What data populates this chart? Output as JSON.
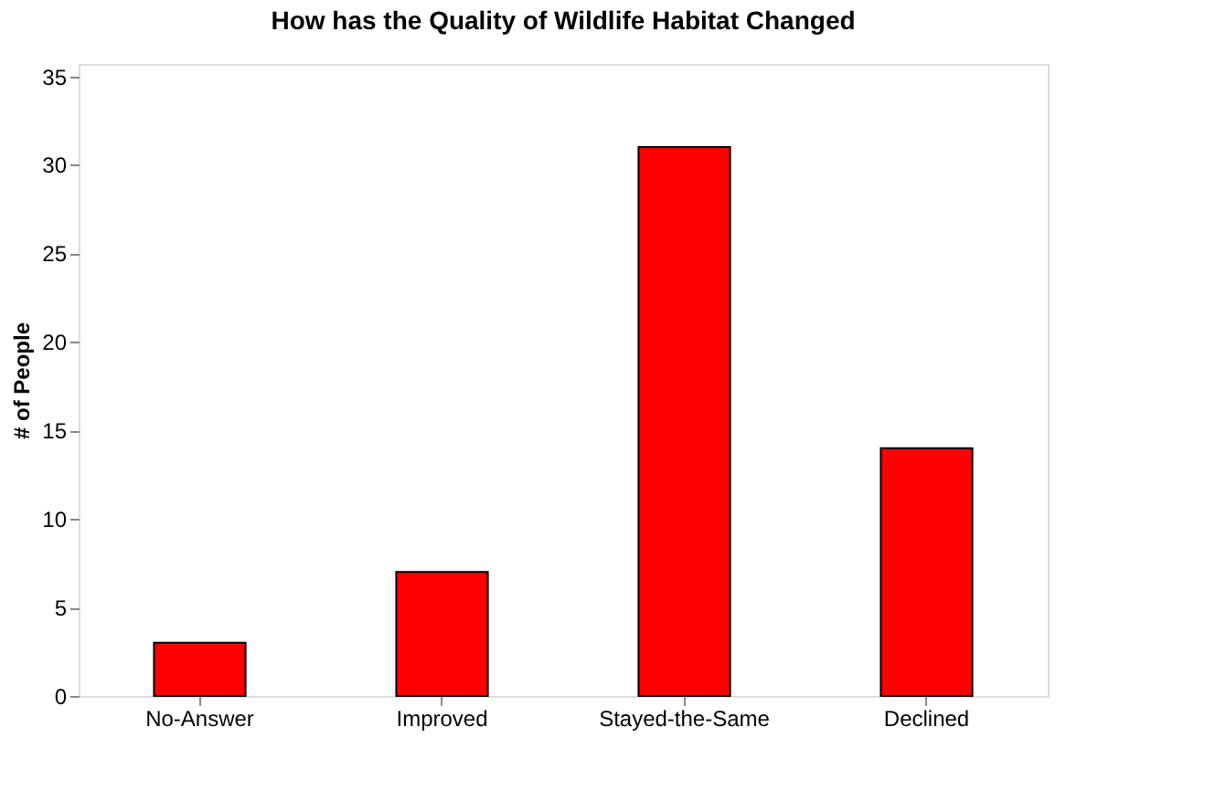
{
  "chart_data": {
    "type": "bar",
    "title": "How has the Quality of Wildlife Habitat Changed",
    "ylabel": "# of People",
    "categories": [
      "No-Answer",
      "Improved",
      "Stayed-the-Same",
      "Declined"
    ],
    "values": [
      3,
      7,
      31,
      14
    ],
    "color": "#ff0000",
    "ylim": [
      0,
      35.7
    ],
    "yticks": [
      0,
      5,
      10,
      15,
      20,
      25,
      30,
      35
    ],
    "grid": false
  }
}
